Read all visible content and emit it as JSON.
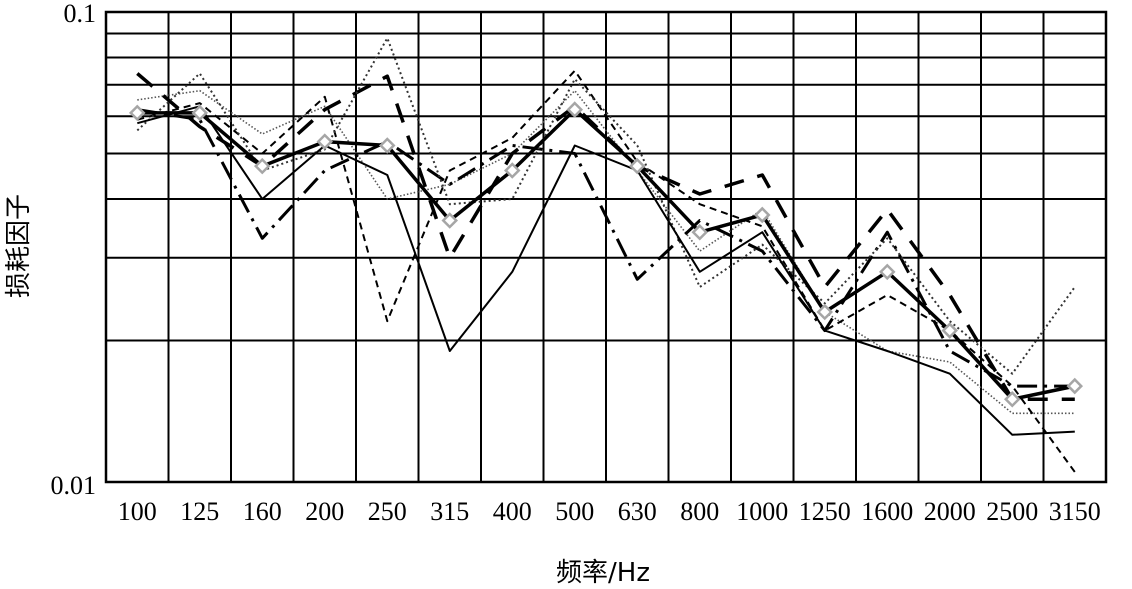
{
  "chart_data": {
    "type": "line",
    "title": "",
    "xlabel": "频率/Hz",
    "ylabel": "损耗因子",
    "y_scale": "log",
    "ylim": [
      0.01,
      0.1
    ],
    "y_ticks": [
      "0.1",
      "0.01"
    ],
    "grid": true,
    "categories": [
      "100",
      "125",
      "160",
      "200",
      "250",
      "315",
      "400",
      "500",
      "630",
      "800",
      "1000",
      "1250",
      "1600",
      "2000",
      "2500",
      "3150"
    ],
    "series": [
      {
        "style": "thick-solid-diamond",
        "color": "#000000",
        "marker_color": "#a6a6a6",
        "values": [
          0.061,
          0.061,
          0.047,
          0.053,
          0.052,
          0.036,
          0.046,
          0.062,
          0.047,
          0.034,
          0.037,
          0.023,
          0.028,
          0.021,
          0.015,
          0.016
        ]
      },
      {
        "style": "thin-solid",
        "color": "#000000",
        "values": [
          0.058,
          0.063,
          0.04,
          0.052,
          0.045,
          0.019,
          0.028,
          0.052,
          0.046,
          0.028,
          0.034,
          0.021,
          0.019,
          0.017,
          0.0126,
          0.0128
        ]
      },
      {
        "style": "dotted",
        "color": "#333333",
        "values": [
          0.056,
          0.074,
          0.046,
          0.051,
          0.088,
          0.039,
          0.04,
          0.072,
          0.052,
          0.026,
          0.032,
          0.024,
          0.033,
          0.022,
          0.017,
          0.026
        ]
      },
      {
        "style": "dashed",
        "color": "#000000",
        "values": [
          0.059,
          0.064,
          0.05,
          0.066,
          0.022,
          0.046,
          0.054,
          0.075,
          0.048,
          0.039,
          0.035,
          0.021,
          0.025,
          0.021,
          0.016,
          0.0105
        ]
      },
      {
        "style": "long-dash",
        "color": "#000000",
        "values": [
          0.074,
          0.057,
          0.047,
          0.062,
          0.073,
          0.03,
          0.05,
          0.063,
          0.047,
          0.041,
          0.045,
          0.026,
          0.038,
          0.025,
          0.015,
          0.015
        ]
      },
      {
        "style": "dash-dot",
        "color": "#000000",
        "values": [
          0.062,
          0.059,
          0.033,
          0.046,
          0.053,
          0.043,
          0.052,
          0.05,
          0.027,
          0.036,
          0.031,
          0.021,
          0.034,
          0.019,
          0.016,
          0.016
        ]
      },
      {
        "style": "fine-dotted",
        "color": "#555555",
        "values": [
          0.065,
          0.068,
          0.055,
          0.063,
          0.04,
          0.043,
          0.05,
          0.068,
          0.046,
          0.031,
          0.038,
          0.023,
          0.019,
          0.018,
          0.014,
          0.014
        ]
      }
    ]
  }
}
